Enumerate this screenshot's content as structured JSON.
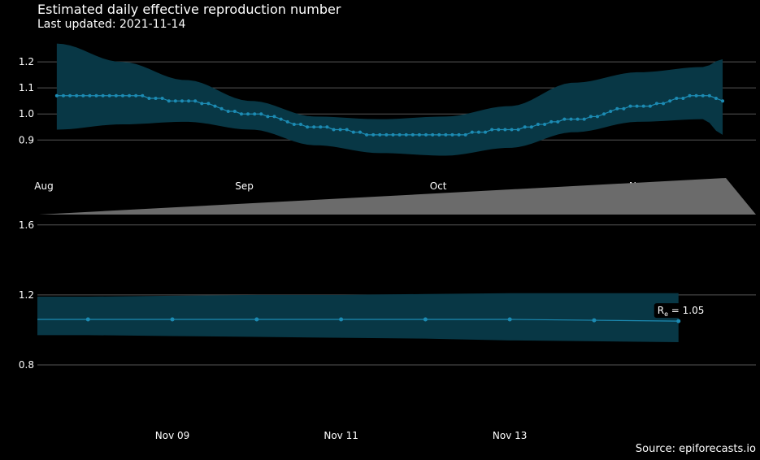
{
  "header": {
    "title": "Estimated daily effective reproduction number",
    "subtitle": "Last updated: 2021-11-14"
  },
  "footer": {
    "source": "Source: epiforecasts.io"
  },
  "colors": {
    "background": "#000000",
    "band": "#083745",
    "line": "#1c8bb3",
    "context": "#6b6b6b",
    "grid": "#555555"
  },
  "chart_data": [
    {
      "type": "line",
      "title": "Estimated daily effective reproduction number",
      "subtitle": "Last updated: 2021-11-14",
      "xlabel": "",
      "ylabel": "",
      "x_start": "2021-08-04",
      "x_end": "2021-11-15",
      "x_ticks": [
        {
          "date": "2021-08-01",
          "label": "Aug"
        },
        {
          "date": "2021-09-01",
          "label": "Sep"
        },
        {
          "date": "2021-10-01",
          "label": "Oct"
        },
        {
          "date": "2021-11-01",
          "label": "Nov"
        }
      ],
      "y_ticks": [
        0.9,
        1.0,
        1.1,
        1.2
      ],
      "ylim": [
        0.77,
        1.3
      ],
      "grid": true,
      "series": [
        {
          "dates": [
            "2021-08-04",
            "2021-08-14",
            "2021-08-24",
            "2021-09-03",
            "2021-09-13",
            "2021-09-23",
            "2021-10-03",
            "2021-10-13",
            "2021-10-23",
            "2021-11-02",
            "2021-11-12",
            "2021-11-15"
          ],
          "median": [
            1.07,
            1.07,
            1.05,
            1.0,
            0.95,
            0.92,
            0.92,
            0.94,
            0.98,
            1.03,
            1.07,
            1.05
          ],
          "lower": [
            0.94,
            0.96,
            0.97,
            0.94,
            0.88,
            0.85,
            0.84,
            0.87,
            0.93,
            0.97,
            0.98,
            0.92
          ],
          "upper": [
            1.27,
            1.2,
            1.13,
            1.05,
            0.99,
            0.98,
            0.99,
            1.03,
            1.12,
            1.16,
            1.18,
            1.21
          ]
        }
      ]
    },
    {
      "type": "area",
      "xlim": [
        "2021-08-02",
        "2021-11-20"
      ],
      "series": [
        {
          "dates": [
            "2021-08-02",
            "2021-11-15",
            "2021-11-20"
          ],
          "lower": [
            0,
            0,
            0
          ],
          "upper": [
            0.02,
            1.0,
            0
          ]
        }
      ]
    },
    {
      "type": "line",
      "x_ticks": [
        {
          "date": "2021-11-09",
          "label": "Nov 09"
        },
        {
          "date": "2021-11-11",
          "label": "Nov 11"
        },
        {
          "date": "2021-11-13",
          "label": "Nov 13"
        }
      ],
      "y_ticks": [
        0.8,
        1.2,
        1.6
      ],
      "ylim": [
        0.6,
        1.65
      ],
      "grid": true,
      "xlim": [
        "2021-11-07.4",
        "2021-11-15.6"
      ],
      "series": [
        {
          "x": [
            7.4,
            8,
            9,
            10,
            11,
            12,
            13,
            14,
            15
          ],
          "median": [
            1.06,
            1.06,
            1.06,
            1.06,
            1.06,
            1.06,
            1.06,
            1.055,
            1.05
          ],
          "lower": [
            0.97,
            0.97,
            0.965,
            0.96,
            0.955,
            0.95,
            0.94,
            0.935,
            0.93
          ],
          "upper": [
            1.19,
            1.19,
            1.195,
            1.2,
            1.2,
            1.205,
            1.21,
            1.21,
            1.21
          ]
        }
      ],
      "annotation": {
        "label_main": "R",
        "label_sub": "e",
        "label_value": " = 1.05",
        "date": "2021-11-15",
        "value": 1.05
      }
    }
  ]
}
